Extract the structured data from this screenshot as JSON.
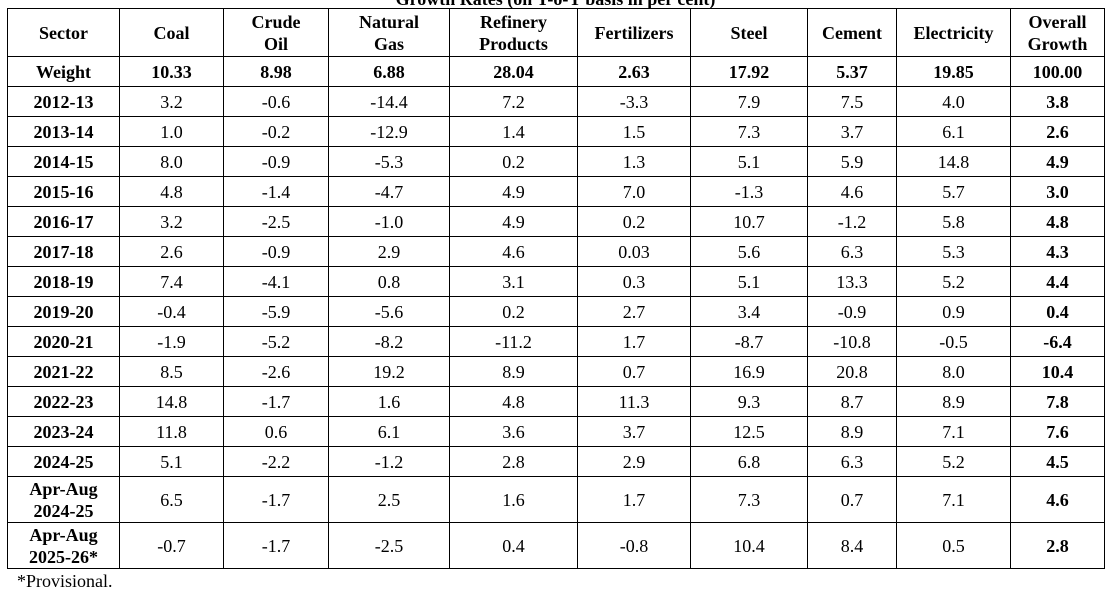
{
  "title": "Growth Rates (on Y-o-Y basis in per cent)",
  "columns": {
    "sector": "Sector",
    "coal": "Coal",
    "crude_oil": [
      "Crude",
      "Oil"
    ],
    "natural_gas": [
      "Natural",
      "Gas"
    ],
    "refinery_products": [
      "Refinery",
      "Products"
    ],
    "fertilizers": "Fertilizers",
    "steel": "Steel",
    "cement": "Cement",
    "electricity": "Electricity",
    "overall": [
      "Overall",
      "Growth"
    ]
  },
  "weight": {
    "label": "Weight",
    "values": [
      "10.33",
      "8.98",
      "6.88",
      "28.04",
      "2.63",
      "17.92",
      "5.37",
      "19.85",
      "100.00"
    ]
  },
  "rows": [
    {
      "label": [
        "2012-13"
      ],
      "values": [
        "3.2",
        "-0.6",
        "-14.4",
        "7.2",
        "-3.3",
        "7.9",
        "7.5",
        "4.0",
        "3.8"
      ]
    },
    {
      "label": [
        "2013-14"
      ],
      "values": [
        "1.0",
        "-0.2",
        "-12.9",
        "1.4",
        "1.5",
        "7.3",
        "3.7",
        "6.1",
        "2.6"
      ]
    },
    {
      "label": [
        "2014-15"
      ],
      "values": [
        "8.0",
        "-0.9",
        "-5.3",
        "0.2",
        "1.3",
        "5.1",
        "5.9",
        "14.8",
        "4.9"
      ]
    },
    {
      "label": [
        "2015-16"
      ],
      "values": [
        "4.8",
        "-1.4",
        "-4.7",
        "4.9",
        "7.0",
        "-1.3",
        "4.6",
        "5.7",
        "3.0"
      ]
    },
    {
      "label": [
        "2016-17"
      ],
      "values": [
        "3.2",
        "-2.5",
        "-1.0",
        "4.9",
        "0.2",
        "10.7",
        "-1.2",
        "5.8",
        "4.8"
      ]
    },
    {
      "label": [
        "2017-18"
      ],
      "values": [
        "2.6",
        "-0.9",
        "2.9",
        "4.6",
        "0.03",
        "5.6",
        "6.3",
        "5.3",
        "4.3"
      ]
    },
    {
      "label": [
        "2018-19"
      ],
      "values": [
        "7.4",
        "-4.1",
        "0.8",
        "3.1",
        "0.3",
        "5.1",
        "13.3",
        "5.2",
        "4.4"
      ]
    },
    {
      "label": [
        "2019-20"
      ],
      "values": [
        "-0.4",
        "-5.9",
        "-5.6",
        "0.2",
        "2.7",
        "3.4",
        "-0.9",
        "0.9",
        "0.4"
      ]
    },
    {
      "label": [
        "2020-21"
      ],
      "values": [
        "-1.9",
        "-5.2",
        "-8.2",
        "-11.2",
        "1.7",
        "-8.7",
        "-10.8",
        "-0.5",
        "-6.4"
      ]
    },
    {
      "label": [
        "2021-22"
      ],
      "values": [
        "8.5",
        "-2.6",
        "19.2",
        "8.9",
        "0.7",
        "16.9",
        "20.8",
        "8.0",
        "10.4"
      ]
    },
    {
      "label": [
        "2022-23"
      ],
      "values": [
        "14.8",
        "-1.7",
        "1.6",
        "4.8",
        "11.3",
        "9.3",
        "8.7",
        "8.9",
        "7.8"
      ]
    },
    {
      "label": [
        "2023-24"
      ],
      "values": [
        "11.8",
        "0.6",
        "6.1",
        "3.6",
        "3.7",
        "12.5",
        "8.9",
        "7.1",
        "7.6"
      ]
    },
    {
      "label": [
        "2024-25"
      ],
      "values": [
        "5.1",
        "-2.2",
        "-1.2",
        "2.8",
        "2.9",
        "6.8",
        "6.3",
        "5.2",
        "4.5"
      ]
    },
    {
      "label": [
        "Apr-Aug",
        "2024-25"
      ],
      "values": [
        "6.5",
        "-1.7",
        "2.5",
        "1.6",
        "1.7",
        "7.3",
        "0.7",
        "7.1",
        "4.6"
      ]
    },
    {
      "label": [
        "Apr-Aug",
        "2025-26*"
      ],
      "values": [
        "-0.7",
        "-1.7",
        "-2.5",
        "0.4",
        "-0.8",
        "10.4",
        "8.4",
        "0.5",
        "2.8"
      ]
    }
  ],
  "footnote": "*Provisional."
}
